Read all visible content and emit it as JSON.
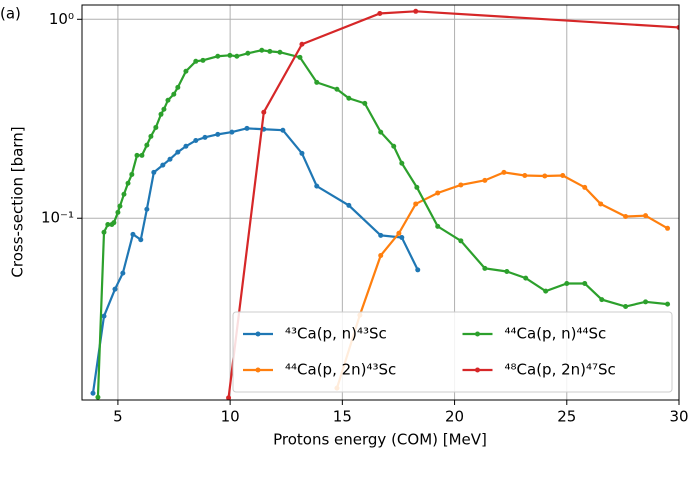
{
  "chart_data": {
    "type": "line",
    "panel_label": "(a)",
    "x_label": "Protons energy (COM) [MeV]",
    "y_label": "Cross-section [barn]",
    "xlim": [
      3.4,
      30
    ],
    "xticks": [
      5,
      10,
      15,
      20,
      25,
      30
    ],
    "ylim": [
      0.0122,
      1.18
    ],
    "yscale": "log",
    "yticks": [
      {
        "value": 0.1,
        "label": "10⁻¹"
      },
      {
        "value": 1,
        "label": "10⁰"
      }
    ],
    "grid": true,
    "legend_position": "lower right",
    "legend_columns": 2,
    "series": [
      {
        "name": "⁴³Ca(p, n)⁴³Sc",
        "color": "#1f77b4",
        "x": [
          3.89,
          4.38,
          4.87,
          5.22,
          5.67,
          6.02,
          6.29,
          6.6,
          7.0,
          7.32,
          7.67,
          8.03,
          8.47,
          8.88,
          9.45,
          10.08,
          10.75,
          11.5,
          12.35,
          13.2,
          13.86,
          15.29,
          16.71,
          17.65,
          18.36
        ],
        "values": [
          0.0132,
          0.0322,
          0.044,
          0.053,
          0.083,
          0.078,
          0.111,
          0.17,
          0.185,
          0.198,
          0.215,
          0.23,
          0.246,
          0.255,
          0.264,
          0.271,
          0.283,
          0.28,
          0.277,
          0.212,
          0.145,
          0.116,
          0.082,
          0.08,
          0.055
        ]
      },
      {
        "name": "⁴⁴Ca(p, 2n)⁴³Sc",
        "color": "#ff7f0e",
        "x": [
          14.76,
          15.78,
          16.71,
          17.52,
          18.27,
          19.25,
          20.28,
          21.35,
          22.2,
          23.13,
          24.02,
          24.82,
          25.8,
          26.51,
          27.62,
          28.51,
          29.49
        ],
        "values": [
          0.014,
          0.0326,
          0.065,
          0.084,
          0.118,
          0.134,
          0.147,
          0.155,
          0.17,
          0.164,
          0.163,
          0.164,
          0.143,
          0.118,
          0.102,
          0.103,
          0.089
        ]
      },
      {
        "name": "⁴⁴Ca(p, n)⁴⁴Sc",
        "color": "#2ca02c",
        "x": [
          4.11,
          4.38,
          4.55,
          4.73,
          4.82,
          5.0,
          5.09,
          5.27,
          5.45,
          5.62,
          5.85,
          6.07,
          6.29,
          6.47,
          6.69,
          6.92,
          7.05,
          7.23,
          7.49,
          7.67,
          8.03,
          8.47,
          8.79,
          9.45,
          9.99,
          10.3,
          10.79,
          11.41,
          11.77,
          12.22,
          13.11,
          13.86,
          14.76,
          15.29,
          16.0,
          16.71,
          17.29,
          17.65,
          18.32,
          19.25,
          20.28,
          21.35,
          22.33,
          23.17,
          24.06,
          25.0,
          25.8,
          26.56,
          27.62,
          28.51,
          29.49
        ],
        "values": [
          0.0126,
          0.085,
          0.093,
          0.093,
          0.095,
          0.107,
          0.115,
          0.132,
          0.15,
          0.166,
          0.207,
          0.207,
          0.233,
          0.258,
          0.286,
          0.333,
          0.353,
          0.392,
          0.42,
          0.455,
          0.548,
          0.615,
          0.622,
          0.652,
          0.659,
          0.652,
          0.675,
          0.699,
          0.69,
          0.683,
          0.644,
          0.482,
          0.445,
          0.401,
          0.378,
          0.271,
          0.23,
          0.189,
          0.143,
          0.091,
          0.077,
          0.056,
          0.054,
          0.05,
          0.043,
          0.047,
          0.047,
          0.039,
          0.036,
          0.038,
          0.037
        ]
      },
      {
        "name": "⁴⁸Ca(p, 2n)⁴⁷Sc",
        "color": "#d62728",
        "x": [
          9.93,
          11.5,
          13.2,
          16.67,
          18.27,
          30
        ],
        "values": [
          0.0125,
          0.341,
          0.749,
          1.07,
          1.097,
          0.91
        ]
      }
    ]
  }
}
